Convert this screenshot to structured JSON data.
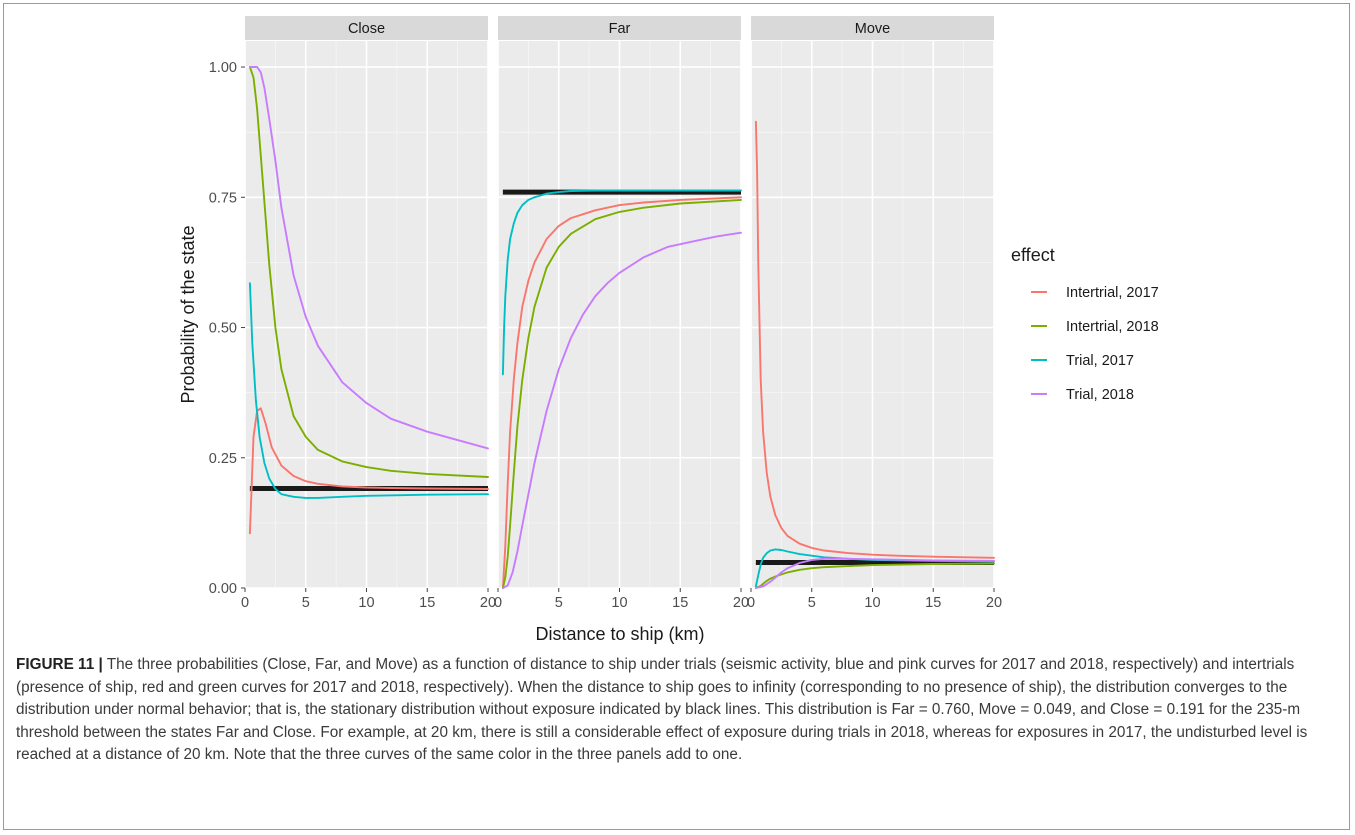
{
  "caption": {
    "figure_label": "FIGURE 11 |",
    "text": "The three probabilities (Close, Far, and Move) as a function of distance to ship under trials (seismic activity, blue and pink curves for 2017 and 2018, respectively) and intertrials (presence of ship, red and green curves for 2017 and 2018, respectively). When the distance to ship goes to infinity (corresponding to no presence of ship), the distribution converges to the distribution under normal behavior; that is, the stationary distribution without exposure indicated by black lines. This distribution is Far = 0.760, Move = 0.049, and Close = 0.191 for the 235-m threshold between the states Far and Close. For example, at 20 km, there is still a considerable effect of exposure during trials in 2018, whereas for exposures in 2017, the undisturbed level is reached at a distance of 20 km. Note that the three curves of the same color in the three panels add to one."
  },
  "chart_data": {
    "type": "line",
    "xlabel": "Distance to ship (km)",
    "ylabel": "Probability of the state",
    "xlim": [
      0,
      20
    ],
    "ylim": [
      0,
      1.05
    ],
    "xticks": [
      0,
      5,
      10,
      15,
      20
    ],
    "yticks": [
      0,
      0.25,
      0.5,
      0.75,
      1.0
    ],
    "ytick_labels": [
      "0.00",
      "0.25",
      "0.50",
      "0.75",
      "1.00"
    ],
    "grid": true,
    "legend": {
      "title": "effect",
      "placement": "right"
    },
    "series_styles": [
      {
        "name": "Intertrial, 2017",
        "color": "#F8766D"
      },
      {
        "name": "Intertrial, 2018",
        "color": "#7CAE00"
      },
      {
        "name": "Trial, 2017",
        "color": "#00BFC4"
      },
      {
        "name": "Trial, 2018",
        "color": "#C77CFF"
      }
    ],
    "baseline_color": "#1a1a1a",
    "panels": [
      {
        "title": "Close",
        "baseline": 0.191,
        "series": [
          {
            "name": "Intertrial, 2017",
            "x": [
              0.4,
              0.7,
              1.0,
              1.3,
              1.7,
              2.2,
              3,
              4,
              5,
              6,
              8,
              10,
              12,
              15,
              20
            ],
            "y": [
              0.105,
              0.29,
              0.34,
              0.345,
              0.315,
              0.27,
              0.235,
              0.215,
              0.205,
              0.2,
              0.195,
              0.193,
              0.192,
              0.191,
              0.19
            ]
          },
          {
            "name": "Intertrial, 2018",
            "x": [
              0.4,
              0.7,
              1.0,
              1.4,
              2,
              2.5,
              3,
              4,
              5,
              6,
              8,
              10,
              12,
              15,
              20
            ],
            "y": [
              1.0,
              0.98,
              0.92,
              0.8,
              0.62,
              0.5,
              0.42,
              0.33,
              0.29,
              0.265,
              0.243,
              0.232,
              0.225,
              0.219,
              0.213
            ]
          },
          {
            "name": "Trial, 2017",
            "x": [
              0.4,
              0.6,
              0.9,
              1.2,
              1.6,
              2,
              2.5,
              3,
              4,
              5,
              6,
              8,
              10,
              15,
              20
            ],
            "y": [
              0.585,
              0.47,
              0.36,
              0.29,
              0.24,
              0.21,
              0.19,
              0.18,
              0.175,
              0.173,
              0.173,
              0.175,
              0.177,
              0.179,
              0.18
            ]
          },
          {
            "name": "Trial, 2018",
            "x": [
              0.4,
              0.7,
              1.0,
              1.3,
              1.6,
              2,
              2.5,
              3,
              4,
              5,
              6,
              8,
              10,
              12,
              15,
              20
            ],
            "y": [
              1.0,
              1.0,
              1.0,
              0.99,
              0.96,
              0.9,
              0.82,
              0.73,
              0.6,
              0.52,
              0.465,
              0.395,
              0.355,
              0.325,
              0.3,
              0.268
            ]
          }
        ]
      },
      {
        "title": "Far",
        "baseline": 0.76,
        "series": [
          {
            "name": "Intertrial, 2017",
            "x": [
              0.4,
              0.6,
              0.8,
              1.0,
              1.3,
              1.6,
              2,
              2.5,
              3,
              4,
              5,
              6,
              8,
              10,
              12,
              15,
              20
            ],
            "y": [
              0.0,
              0.08,
              0.2,
              0.3,
              0.4,
              0.47,
              0.54,
              0.59,
              0.625,
              0.67,
              0.695,
              0.71,
              0.725,
              0.735,
              0.74,
              0.745,
              0.75
            ]
          },
          {
            "name": "Intertrial, 2018",
            "x": [
              0.4,
              0.6,
              0.8,
              1.0,
              1.3,
              1.6,
              2,
              2.5,
              3,
              4,
              5,
              6,
              8,
              10,
              12,
              15,
              20
            ],
            "y": [
              0.0,
              0.02,
              0.06,
              0.12,
              0.22,
              0.31,
              0.4,
              0.48,
              0.54,
              0.615,
              0.655,
              0.68,
              0.708,
              0.722,
              0.73,
              0.738,
              0.745
            ]
          },
          {
            "name": "Trial, 2017",
            "x": [
              0.4,
              0.5,
              0.6,
              0.8,
              1.0,
              1.3,
              1.6,
              2,
              2.5,
              3,
              4,
              5,
              6,
              8,
              10,
              15,
              20
            ],
            "y": [
              0.41,
              0.5,
              0.56,
              0.63,
              0.67,
              0.7,
              0.72,
              0.735,
              0.745,
              0.75,
              0.757,
              0.76,
              0.762,
              0.763,
              0.763,
              0.763,
              0.763
            ]
          },
          {
            "name": "Trial, 2018",
            "x": [
              0.4,
              0.8,
              1.2,
              1.6,
              2,
              2.5,
              3,
              3.5,
              4,
              5,
              6,
              7,
              8,
              9,
              10,
              12,
              14,
              16,
              18,
              20
            ],
            "y": [
              0.0,
              0.005,
              0.03,
              0.07,
              0.12,
              0.18,
              0.24,
              0.29,
              0.34,
              0.42,
              0.48,
              0.525,
              0.56,
              0.585,
              0.605,
              0.635,
              0.655,
              0.665,
              0.675,
              0.682
            ]
          }
        ]
      },
      {
        "title": "Move",
        "baseline": 0.049,
        "series": [
          {
            "name": "Intertrial, 2017",
            "x": [
              0.4,
              0.5,
              0.6,
              0.8,
              1.0,
              1.3,
              1.6,
              2,
              2.5,
              3,
              4,
              5,
              6,
              8,
              10,
              12,
              15,
              20
            ],
            "y": [
              0.895,
              0.8,
              0.62,
              0.4,
              0.3,
              0.22,
              0.175,
              0.14,
              0.115,
              0.1,
              0.085,
              0.077,
              0.072,
              0.067,
              0.064,
              0.062,
              0.06,
              0.058
            ]
          },
          {
            "name": "Intertrial, 2018",
            "x": [
              0.4,
              0.8,
              1.2,
              1.6,
              2,
              3,
              4,
              5,
              6,
              8,
              10,
              15,
              20
            ],
            "y": [
              0.0,
              0.004,
              0.012,
              0.018,
              0.022,
              0.03,
              0.035,
              0.038,
              0.04,
              0.042,
              0.044,
              0.046,
              0.047
            ]
          },
          {
            "name": "Trial, 2017",
            "x": [
              0.4,
              0.6,
              0.8,
              1.0,
              1.3,
              1.6,
              2,
              2.5,
              3,
              4,
              5,
              6,
              8,
              10,
              15,
              20
            ],
            "y": [
              0.003,
              0.025,
              0.045,
              0.058,
              0.067,
              0.072,
              0.074,
              0.073,
              0.07,
              0.065,
              0.062,
              0.059,
              0.056,
              0.054,
              0.052,
              0.051
            ]
          },
          {
            "name": "Trial, 2018",
            "x": [
              0.4,
              1.0,
              1.6,
              2,
              2.5,
              3,
              4,
              5,
              6,
              8,
              10,
              15,
              20
            ],
            "y": [
              0.0,
              0.003,
              0.012,
              0.02,
              0.03,
              0.038,
              0.048,
              0.054,
              0.056,
              0.056,
              0.055,
              0.053,
              0.052
            ]
          }
        ]
      }
    ]
  }
}
